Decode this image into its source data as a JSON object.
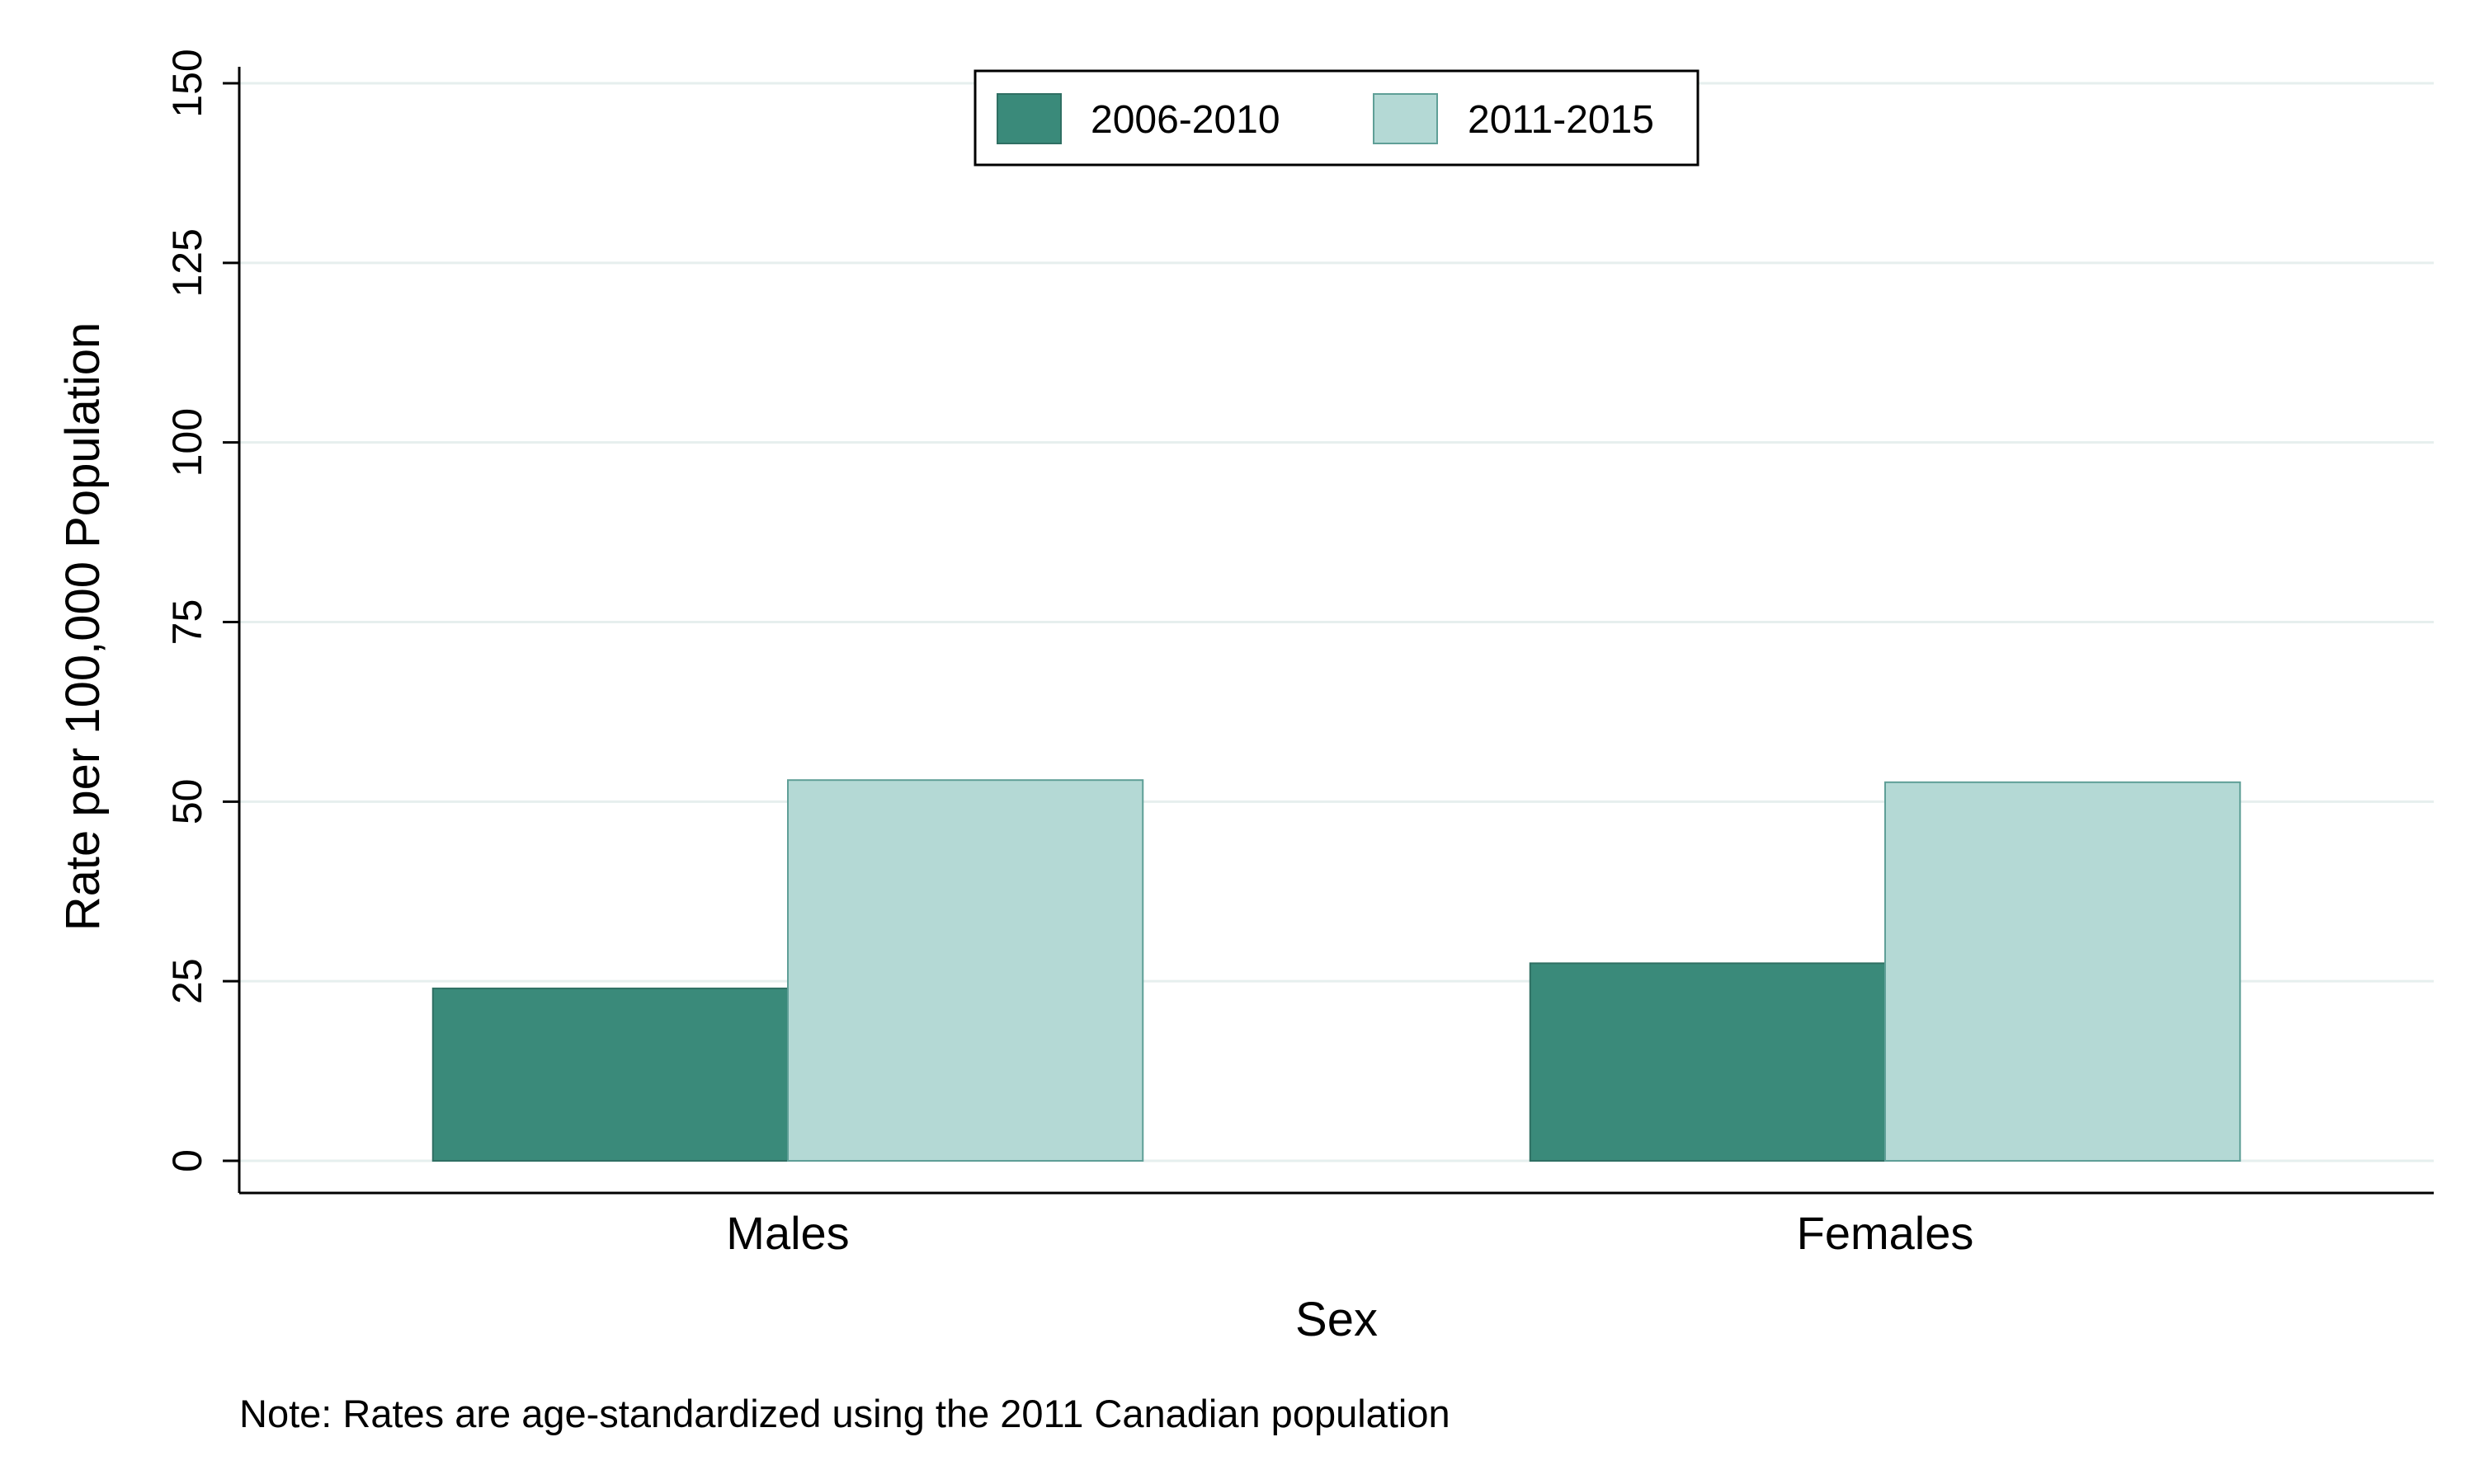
{
  "chart_data": {
    "type": "bar",
    "title": "",
    "xlabel": "Sex",
    "ylabel": "Rate per 100,000 Population",
    "categories": [
      "Males",
      "Females"
    ],
    "series": [
      {
        "name": "2006-2010",
        "values": [
          24,
          27.5
        ]
      },
      {
        "name": "2011-2015",
        "values": [
          53,
          52.7
        ]
      }
    ],
    "ylim": [
      0,
      150
    ],
    "yticks": [
      "0",
      "25",
      "50",
      "75",
      "100",
      "125",
      "150"
    ],
    "grid": true,
    "legend_position": "top-center",
    "note": "Note: Rates are age-standardized using the 2011 Canadian population"
  },
  "colors": {
    "series": [
      "#3a8a7a",
      "#b4d9d5"
    ],
    "series_edge": [
      "#2f6f63",
      "#5f9f97"
    ],
    "grid": "#e6efee",
    "axis": "#000000"
  }
}
